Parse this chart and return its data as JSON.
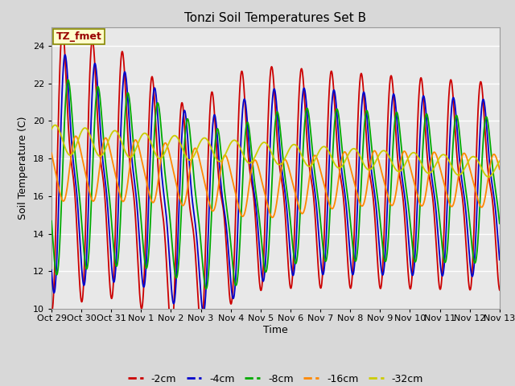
{
  "title": "Tonzi Soil Temperatures Set B",
  "xlabel": "Time",
  "ylabel": "Soil Temperature (C)",
  "annotation": "TZ_fmet",
  "ylim": [
    10,
    25
  ],
  "yticks": [
    10,
    12,
    14,
    16,
    18,
    20,
    22,
    24
  ],
  "xtick_labels": [
    "Oct 29",
    "Oct 30",
    "Oct 31",
    "Nov 1",
    "Nov 2",
    "Nov 3",
    "Nov 4",
    "Nov 5",
    "Nov 6",
    "Nov 7",
    "Nov 8",
    "Nov 9",
    "Nov 10",
    "Nov 11",
    "Nov 12",
    "Nov 13"
  ],
  "series_colors": [
    "#cc0000",
    "#0000cc",
    "#00aa00",
    "#ff8800",
    "#cccc00"
  ],
  "series_labels": [
    "-2cm",
    "-4cm",
    "-8cm",
    "-16cm",
    "-32cm"
  ],
  "fig_bg_color": "#d8d8d8",
  "plot_bg_color": "#e8e8e8",
  "grid_color": "#ffffff"
}
